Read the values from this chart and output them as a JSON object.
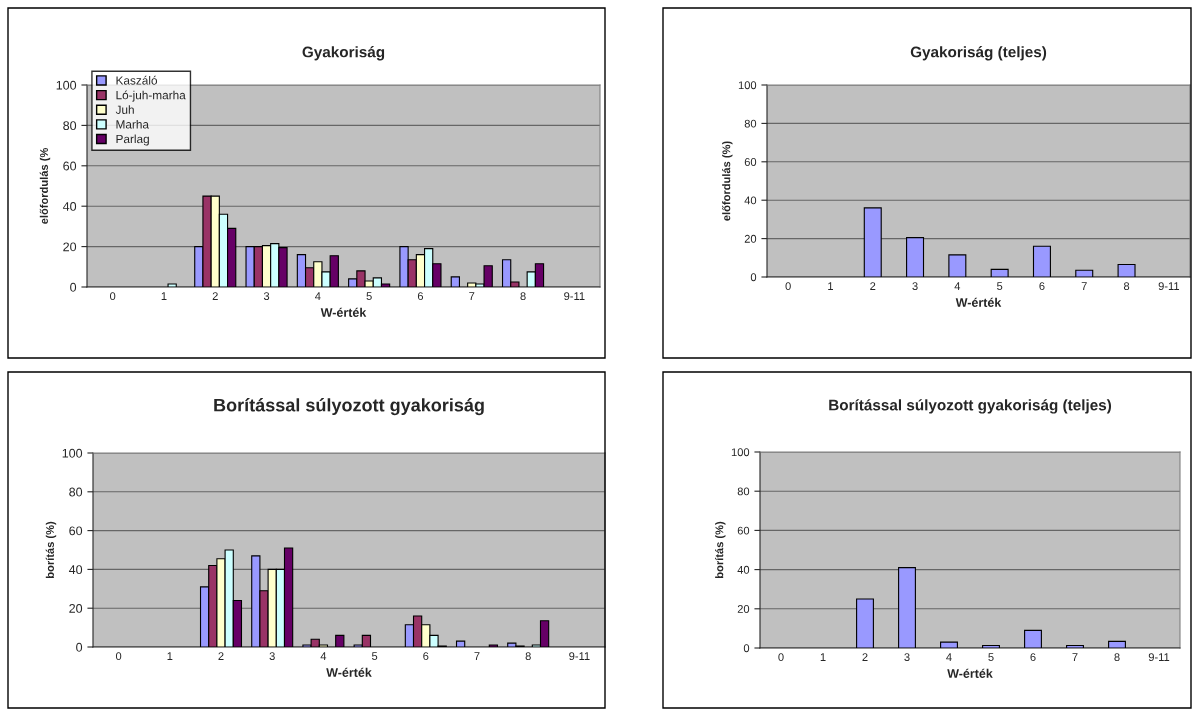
{
  "chart_data": [
    {
      "type": "bar",
      "title": "Gyakoriság",
      "xlabel": "W-érték",
      "ylabel": "előfordulás (%",
      "categories": [
        "0",
        "1",
        "2",
        "3",
        "4",
        "5",
        "6",
        "7",
        "8",
        "9-11"
      ],
      "ylim": [
        0,
        100
      ],
      "yticks": [
        0,
        20,
        40,
        60,
        80,
        100
      ],
      "grid": "y",
      "legend": "top left",
      "series": [
        {
          "name": "Kaszáló",
          "color": "#9999ff",
          "values": [
            null,
            null,
            20,
            20,
            16,
            4,
            20,
            5,
            13.5,
            null
          ]
        },
        {
          "name": "Ló-juh-marha",
          "color": "#993366",
          "values": [
            null,
            null,
            45,
            20,
            9.5,
            8,
            13.5,
            null,
            2.5,
            null
          ]
        },
        {
          "name": "Juh",
          "color": "#ffffcc",
          "values": [
            null,
            null,
            45,
            20.5,
            12.5,
            3,
            16,
            2,
            null,
            null
          ]
        },
        {
          "name": "Marha",
          "color": "#ccffff",
          "values": [
            null,
            1.5,
            36,
            21.5,
            7.5,
            4.5,
            19,
            1.5,
            7.5,
            null
          ]
        },
        {
          "name": "Parlag",
          "color": "#660066",
          "values": [
            null,
            null,
            29,
            19.5,
            15.5,
            1.5,
            11.5,
            10.5,
            11.5,
            null
          ]
        }
      ]
    },
    {
      "type": "bar",
      "title": "Gyakoriság (teljes)",
      "xlabel": "W-érték",
      "ylabel": "előfordulás (%)",
      "categories": [
        "0",
        "1",
        "2",
        "3",
        "4",
        "5",
        "6",
        "7",
        "8",
        "9-11"
      ],
      "ylim": [
        0,
        100
      ],
      "yticks": [
        0,
        20,
        40,
        60,
        80,
        100
      ],
      "grid": "y",
      "series": [
        {
          "color": "#9999ff",
          "values": [
            null,
            null,
            36,
            20.5,
            11.5,
            4,
            16,
            3.5,
            6.5,
            null
          ]
        }
      ]
    },
    {
      "type": "bar",
      "title": "Borítással súlyozott gyakoriság",
      "xlabel": "W-érték",
      "ylabel": "borítás (%)",
      "categories": [
        "0",
        "1",
        "2",
        "3",
        "4",
        "5",
        "6",
        "7",
        "8",
        "9-11"
      ],
      "ylim": [
        0,
        100
      ],
      "yticks": [
        0,
        20,
        40,
        60,
        80,
        100
      ],
      "grid": "y",
      "series": [
        {
          "color": "#9999ff",
          "values": [
            null,
            null,
            31,
            47,
            1,
            1,
            11.5,
            3,
            2,
            null
          ]
        },
        {
          "color": "#993366",
          "values": [
            null,
            null,
            42,
            29,
            4,
            6,
            16,
            null,
            0.5,
            null
          ]
        },
        {
          "color": "#ffffcc",
          "values": [
            null,
            null,
            45.5,
            40,
            1,
            null,
            11.5,
            null,
            null,
            null
          ]
        },
        {
          "color": "#ccffff",
          "values": [
            null,
            null,
            50,
            40,
            null,
            null,
            6,
            null,
            1,
            null
          ]
        },
        {
          "color": "#660066",
          "values": [
            null,
            null,
            24,
            51,
            6,
            null,
            0.5,
            1,
            13.5,
            null
          ]
        }
      ]
    },
    {
      "type": "bar",
      "title": "Borítással súlyozott gyakoriság (teljes)",
      "xlabel": "W-érték",
      "ylabel": "borítás (%)",
      "categories": [
        "0",
        "1",
        "2",
        "3",
        "4",
        "5",
        "6",
        "7",
        "8",
        "9-11"
      ],
      "ylim": [
        0,
        100
      ],
      "yticks": [
        0,
        20,
        40,
        60,
        80,
        100
      ],
      "grid": "y",
      "series": [
        {
          "color": "#9999ff",
          "values": [
            null,
            null,
            25,
            41,
            3,
            1.3,
            9,
            1.3,
            3.4,
            null
          ]
        }
      ]
    }
  ]
}
